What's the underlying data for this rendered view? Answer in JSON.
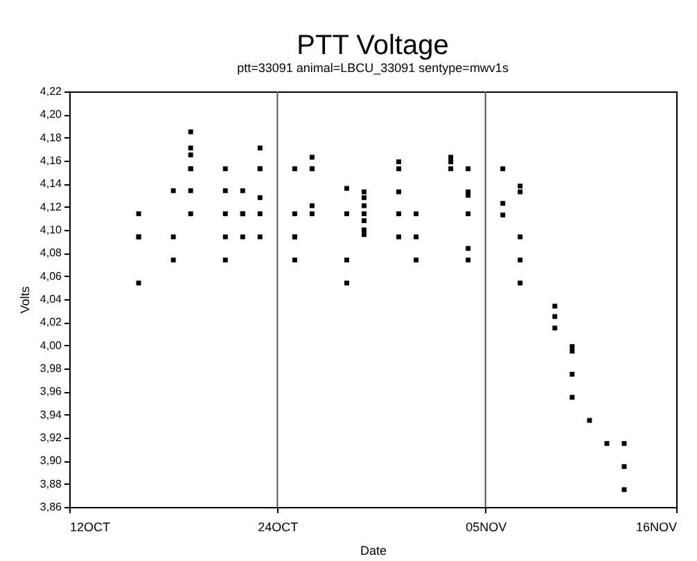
{
  "chart_data": {
    "type": "scatter",
    "title": "PTT Voltage",
    "subtitle": "ptt=33091 animal=LBCU_33091 sentype=mwv1s",
    "xlabel": "Date",
    "ylabel": "Volts",
    "x": [
      "--10-16",
      "--10-16",
      "--10-16",
      "--10-16",
      "--10-18",
      "--10-18",
      "--10-18",
      "--10-19",
      "--10-19",
      "--10-19",
      "--10-19",
      "--10-19",
      "--10-19",
      "--10-19",
      "--10-21",
      "--10-21",
      "--10-21",
      "--10-21",
      "--10-21",
      "--10-22",
      "--10-22",
      "--10-22",
      "--10-22",
      "--10-23",
      "--10-23",
      "--10-23",
      "--10-23",
      "--10-23",
      "--10-23",
      "--10-25",
      "--10-25",
      "--10-25",
      "--10-25",
      "--10-25",
      "--10-26",
      "--10-26",
      "--10-26",
      "--10-26",
      "--10-26",
      "--10-28",
      "--10-28",
      "--10-28",
      "--10-28",
      "--10-29",
      "--10-29",
      "--10-29",
      "--10-29",
      "--10-29",
      "--10-29",
      "--10-29",
      "--10-31",
      "--10-31",
      "--10-31",
      "--10-31",
      "--10-31",
      "--11-01",
      "--11-01",
      "--11-01",
      "--11-03",
      "--11-03",
      "--11-03",
      "--11-04",
      "--11-04",
      "--11-04",
      "--11-04",
      "--11-04",
      "--11-04",
      "--11-06",
      "--11-06",
      "--11-06",
      "--11-07",
      "--11-07",
      "--11-07",
      "--11-07",
      "--11-07",
      "--11-09",
      "--11-09",
      "--11-09",
      "--11-10",
      "--11-10",
      "--11-10",
      "--11-10",
      "--11-11",
      "--11-12",
      "--11-13",
      "--11-13",
      "--11-13"
    ],
    "series": [
      {
        "color": "#000000",
        "values": [
          4.054,
          4.094,
          4.094,
          4.114,
          4.134,
          4.094,
          4.074,
          4.153,
          4.153,
          4.134,
          4.114,
          4.185,
          4.171,
          4.165,
          4.153,
          4.134,
          4.114,
          4.094,
          4.074,
          4.134,
          4.114,
          4.114,
          4.094,
          4.153,
          4.153,
          4.171,
          4.128,
          4.114,
          4.094,
          4.153,
          4.114,
          4.094,
          4.094,
          4.074,
          4.153,
          4.153,
          4.163,
          4.121,
          4.114,
          4.136,
          4.114,
          4.074,
          4.054,
          4.133,
          4.128,
          4.121,
          4.114,
          4.108,
          4.1,
          4.096,
          4.159,
          4.153,
          4.133,
          4.114,
          4.094,
          4.114,
          4.094,
          4.074,
          4.153,
          4.159,
          4.163,
          4.153,
          4.133,
          4.13,
          4.114,
          4.084,
          4.074,
          4.153,
          4.123,
          4.113,
          4.138,
          4.133,
          4.094,
          4.074,
          4.054,
          4.034,
          4.025,
          4.015,
          3.999,
          3.995,
          3.975,
          3.955,
          3.935,
          3.915,
          3.915,
          3.895,
          3.875
        ]
      }
    ],
    "xlim": [
      "--10-12",
      "--11-16"
    ],
    "xticks": [
      {
        "value": "--10-12",
        "label": "12OCT"
      },
      {
        "value": "--10-24",
        "label": "24OCT"
      },
      {
        "value": "--11-05",
        "label": "05NOV"
      },
      {
        "value": "--11-16",
        "label": "16NOV"
      }
    ],
    "ylim": [
      3.86,
      4.22
    ],
    "yticks": [
      {
        "value": 3.86,
        "label": "3,86"
      },
      {
        "value": 3.88,
        "label": "3,88"
      },
      {
        "value": 3.9,
        "label": "3,90"
      },
      {
        "value": 3.92,
        "label": "3,92"
      },
      {
        "value": 3.94,
        "label": "3,94"
      },
      {
        "value": 3.96,
        "label": "3,96"
      },
      {
        "value": 3.98,
        "label": "3,98"
      },
      {
        "value": 4.0,
        "label": "4,00"
      },
      {
        "value": 4.02,
        "label": "4,02"
      },
      {
        "value": 4.04,
        "label": "4,04"
      },
      {
        "value": 4.06,
        "label": "4,06"
      },
      {
        "value": 4.08,
        "label": "4,08"
      },
      {
        "value": 4.1,
        "label": "4,10"
      },
      {
        "value": 4.12,
        "label": "4,12"
      },
      {
        "value": 4.14,
        "label": "4,14"
      },
      {
        "value": 4.16,
        "label": "4,16"
      },
      {
        "value": 4.18,
        "label": "4,18"
      },
      {
        "value": 4.2,
        "label": "4,20"
      },
      {
        "value": 4.22,
        "label": "4,22"
      }
    ],
    "ref_lines": [
      {
        "axis": "x",
        "value": "--10-24",
        "color": "#555555"
      },
      {
        "axis": "x",
        "value": "--11-05",
        "color": "#555555"
      }
    ],
    "marker": "square",
    "grid": false
  }
}
